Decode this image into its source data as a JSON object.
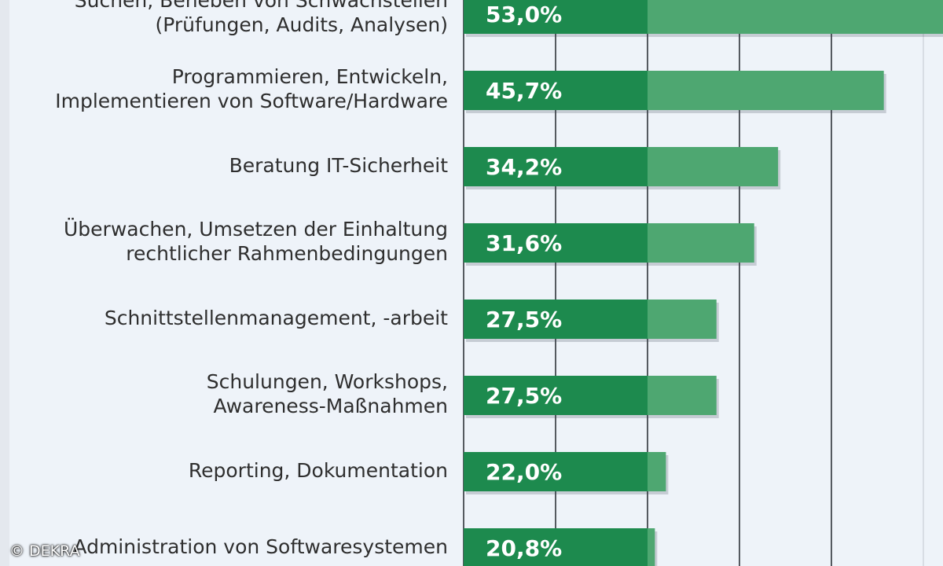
{
  "chart_data": {
    "type": "bar",
    "orientation": "horizontal",
    "unit": "%",
    "categories": [
      "Suchen, Beheben von Schwachstellen\n(Prüfungen, Audits, Analysen)",
      "Programmieren, Entwickeln,\nImplementieren von Software/Hardware",
      "Beratung IT-Sicherheit",
      "Überwachen, Umsetzen der Einhaltung\nrechtlicher Rahmenbedingungen",
      "Schnittstellenmanagement, -arbeit",
      "Schulungen, Workshops,\nAwareness-Maßnahmen",
      "Reporting, Dokumentation",
      "Administration von Softwaresystemen"
    ],
    "values": [
      53.0,
      45.7,
      34.2,
      31.6,
      27.5,
      27.5,
      22.0,
      20.8
    ],
    "value_labels": [
      "53,0%",
      "45,7%",
      "34,2%",
      "31,6%",
      "27,5%",
      "27,5%",
      "22,0%",
      "20,8%"
    ],
    "xlim": [
      0,
      60
    ],
    "grid": true,
    "colors": {
      "bar": "#1d8a4e",
      "bar_light": "#4ea771",
      "grid": "#555a60",
      "label": "#2e2e2e"
    }
  },
  "watermark": "© DEKRA"
}
